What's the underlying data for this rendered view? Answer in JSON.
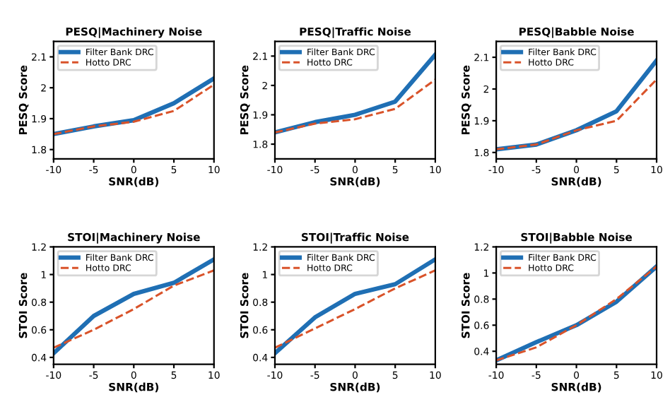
{
  "chart_data": [
    {
      "type": "line",
      "title": "PESQ|Machinery Noise",
      "xlabel": "SNR(dB)",
      "ylabel": "PESQ Score",
      "x": [
        -10,
        -5,
        0,
        5,
        10
      ],
      "xlim": [
        -10,
        10
      ],
      "xticks": [
        -10,
        -5,
        0,
        5,
        10
      ],
      "ylim": [
        1.77,
        2.15
      ],
      "yticks": [
        1.8,
        1.9,
        2,
        2.1
      ],
      "legend": "top left",
      "grid": false,
      "series": [
        {
          "name": "Filter Bank DRC",
          "color": "#1f6fb4",
          "line_style": "solid",
          "values": [
            1.85,
            1.875,
            1.895,
            1.95,
            2.03
          ]
        },
        {
          "name": "Hotto DRC",
          "color": "#d9532a",
          "line_style": "dashed",
          "values": [
            1.85,
            1.875,
            1.89,
            1.925,
            2.01
          ]
        }
      ]
    },
    {
      "type": "line",
      "title": "PESQ|Traffic Noise",
      "xlabel": "SNR(dB)",
      "ylabel": "PESQ Score",
      "x": [
        -10,
        -5,
        0,
        5,
        10
      ],
      "xlim": [
        -10,
        10
      ],
      "xticks": [
        -10,
        -5,
        0,
        5,
        10
      ],
      "ylim": [
        1.75,
        2.15
      ],
      "yticks": [
        1.8,
        1.9,
        2,
        2.1
      ],
      "legend": "top left",
      "grid": false,
      "series": [
        {
          "name": "Filter Bank DRC",
          "color": "#1f6fb4",
          "line_style": "solid",
          "values": [
            1.84,
            1.875,
            1.9,
            1.945,
            2.105
          ]
        },
        {
          "name": "Hotto DRC",
          "color": "#d9532a",
          "line_style": "dashed",
          "values": [
            1.84,
            1.87,
            1.885,
            1.92,
            2.02
          ]
        }
      ]
    },
    {
      "type": "line",
      "title": "PESQ|Babble Noise",
      "xlabel": "SNR(dB)",
      "ylabel": "PESQ Score",
      "x": [
        -10,
        -5,
        0,
        5,
        10
      ],
      "xlim": [
        -10,
        10
      ],
      "xticks": [
        -10,
        -5,
        0,
        5,
        10
      ],
      "ylim": [
        1.78,
        2.15
      ],
      "yticks": [
        1.8,
        1.9,
        2,
        2.1
      ],
      "legend": "top left",
      "grid": false,
      "series": [
        {
          "name": "Filter Bank DRC",
          "color": "#1f6fb4",
          "line_style": "solid",
          "values": [
            1.81,
            1.825,
            1.87,
            1.93,
            2.09
          ]
        },
        {
          "name": "Hotto DRC",
          "color": "#d9532a",
          "line_style": "dashed",
          "values": [
            1.81,
            1.825,
            1.87,
            1.9,
            2.03
          ]
        }
      ]
    },
    {
      "type": "line",
      "title": "STOI|Machinery Noise",
      "xlabel": "SNR(dB)",
      "ylabel": "STOI Score",
      "x": [
        -10,
        -5,
        0,
        5,
        10
      ],
      "xlim": [
        -10,
        10
      ],
      "xticks": [
        -10,
        -5,
        0,
        5,
        10
      ],
      "ylim": [
        0.35,
        1.2
      ],
      "yticks": [
        0.4,
        0.6,
        0.8,
        1,
        1.2
      ],
      "legend": "top left",
      "grid": false,
      "series": [
        {
          "name": "Filter Bank DRC",
          "color": "#1f6fb4",
          "line_style": "solid",
          "values": [
            0.43,
            0.7,
            0.86,
            0.94,
            1.11
          ]
        },
        {
          "name": "Hotto DRC",
          "color": "#d9532a",
          "line_style": "dashed",
          "values": [
            0.47,
            0.6,
            0.75,
            0.92,
            1.03
          ]
        }
      ]
    },
    {
      "type": "line",
      "title": "STOI|Traffic Noise",
      "xlabel": "SNR(dB)",
      "ylabel": "STOI Score",
      "x": [
        -10,
        -5,
        0,
        5,
        10
      ],
      "xlim": [
        -10,
        10
      ],
      "xticks": [
        -10,
        -5,
        0,
        5,
        10
      ],
      "ylim": [
        0.35,
        1.2
      ],
      "yticks": [
        0.4,
        0.6,
        0.8,
        1,
        1.2
      ],
      "legend": "top left",
      "grid": false,
      "series": [
        {
          "name": "Filter Bank DRC",
          "color": "#1f6fb4",
          "line_style": "solid",
          "values": [
            0.43,
            0.69,
            0.86,
            0.93,
            1.11
          ]
        },
        {
          "name": "Hotto DRC",
          "color": "#d9532a",
          "line_style": "dashed",
          "values": [
            0.47,
            0.61,
            0.75,
            0.9,
            1.03
          ]
        }
      ]
    },
    {
      "type": "line",
      "title": "STOI|Babble Noise",
      "xlabel": "SNR(dB)",
      "ylabel": "STOI Score",
      "x": [
        -10,
        -5,
        0,
        5,
        10
      ],
      "xlim": [
        -10,
        10
      ],
      "xticks": [
        -10,
        -5,
        0,
        5,
        10
      ],
      "ylim": [
        0.3,
        1.2
      ],
      "yticks": [
        0.4,
        0.6,
        0.8,
        1,
        1.2
      ],
      "legend": "top left",
      "grid": false,
      "series": [
        {
          "name": "Filter Bank DRC",
          "color": "#1f6fb4",
          "line_style": "solid",
          "values": [
            0.33,
            0.47,
            0.6,
            0.78,
            1.05
          ]
        },
        {
          "name": "Hotto DRC",
          "color": "#d9532a",
          "line_style": "dashed",
          "values": [
            0.33,
            0.43,
            0.6,
            0.8,
            1.05
          ]
        }
      ]
    }
  ]
}
